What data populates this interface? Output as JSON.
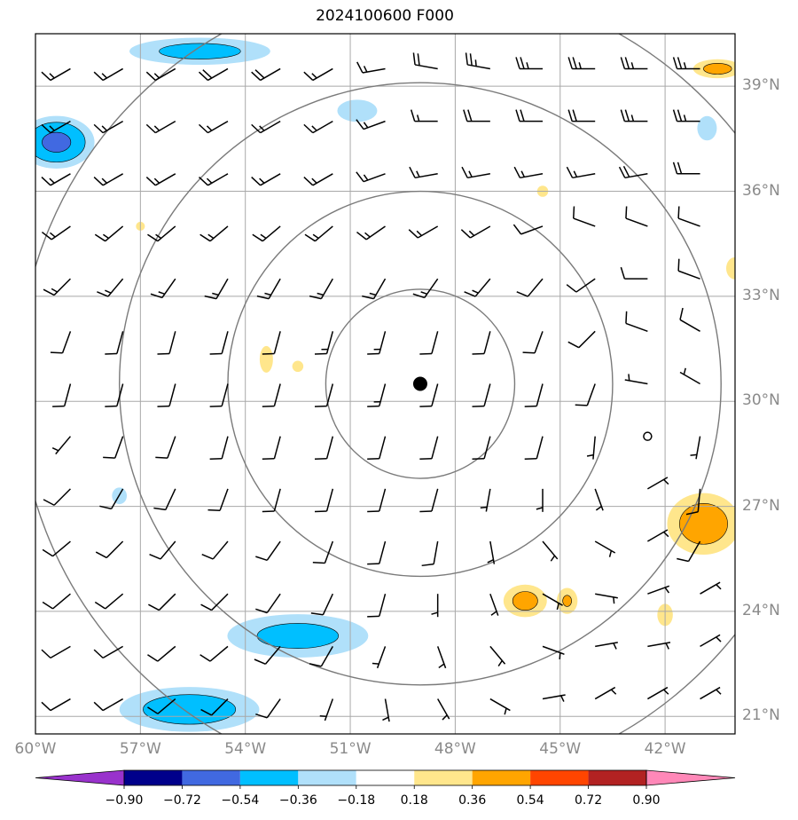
{
  "title": "2024100600 F000",
  "map": {
    "lon_range": [
      -60,
      -40
    ],
    "lat_range": [
      20.5,
      40.5
    ],
    "center": {
      "lon": -49.0,
      "lat": 30.5
    },
    "range_rings_deg": [
      2.7,
      5.5,
      8.6,
      11.5
    ],
    "lat_labels": [
      {
        "lat": 39,
        "text": "39°N"
      },
      {
        "lat": 36,
        "text": "36°N"
      },
      {
        "lat": 33,
        "text": "33°N"
      },
      {
        "lat": 30,
        "text": "30°N"
      },
      {
        "lat": 27,
        "text": "27°N"
      },
      {
        "lat": 24,
        "text": "24°N"
      },
      {
        "lat": 21,
        "text": "21°N"
      }
    ],
    "lon_labels": [
      {
        "lon": -60,
        "text": "60°W"
      },
      {
        "lon": -57,
        "text": "57°W"
      },
      {
        "lon": -54,
        "text": "54°W"
      },
      {
        "lon": -51,
        "text": "51°W"
      },
      {
        "lon": -48,
        "text": "48°W"
      },
      {
        "lon": -45,
        "text": "45°W"
      },
      {
        "lon": -42,
        "text": "42°W"
      }
    ]
  },
  "colorbar": {
    "colors": [
      "#9932cc",
      "#00008b",
      "#4169e1",
      "#00bfff",
      "#b0e0fa",
      "#ffffff",
      "#ffe68c",
      "#ffa500",
      "#ff4500",
      "#b22222",
      "#ff88b8"
    ],
    "labels": [
      "−0.90",
      "−0.72",
      "−0.54",
      "−0.36",
      "−0.18",
      "0.18",
      "0.36",
      "0.54",
      "0.72",
      "0.90"
    ]
  },
  "chart_data": {
    "type": "heatmap",
    "title": "2024100600 F000",
    "levels": [
      -0.9,
      -0.72,
      -0.54,
      -0.36,
      -0.18,
      0.18,
      0.36,
      0.54,
      0.72,
      0.9
    ],
    "field_blobs": [
      {
        "lon": -55.3,
        "lat": 40.0,
        "rx": 2.6,
        "ry": 0.5,
        "sign": -1,
        "peak": 0.45
      },
      {
        "lon": -59.4,
        "lat": 37.4,
        "rx": 1.3,
        "ry": 0.9,
        "sign": -1,
        "peak": 0.6
      },
      {
        "lon": -50.8,
        "lat": 38.3,
        "rx": 0.9,
        "ry": 0.5,
        "sign": -1,
        "peak": 0.3
      },
      {
        "lon": -40.8,
        "lat": 37.8,
        "rx": 0.4,
        "ry": 0.5,
        "sign": -1,
        "peak": 0.35
      },
      {
        "lon": -40.5,
        "lat": 39.5,
        "rx": 0.9,
        "ry": 0.35,
        "sign": 1,
        "peak": 0.45
      },
      {
        "lon": -52.5,
        "lat": 23.3,
        "rx": 2.6,
        "ry": 0.8,
        "sign": -1,
        "peak": 0.45
      },
      {
        "lon": -55.6,
        "lat": 21.2,
        "rx": 2.5,
        "ry": 0.8,
        "sign": -1,
        "peak": 0.5
      },
      {
        "lon": -57.6,
        "lat": 27.3,
        "rx": 0.4,
        "ry": 0.45,
        "sign": -1,
        "peak": 0.25
      },
      {
        "lon": -53.4,
        "lat": 31.2,
        "rx": 0.3,
        "ry": 0.6,
        "sign": 1,
        "peak": 0.3
      },
      {
        "lon": -52.5,
        "lat": 31.0,
        "rx": 0.3,
        "ry": 0.3,
        "sign": 1,
        "peak": 0.25
      },
      {
        "lon": -46.0,
        "lat": 24.3,
        "rx": 0.8,
        "ry": 0.6,
        "sign": 1,
        "peak": 0.45
      },
      {
        "lon": -44.8,
        "lat": 24.3,
        "rx": 0.4,
        "ry": 0.5,
        "sign": 1,
        "peak": 0.4
      },
      {
        "lon": -40.9,
        "lat": 26.5,
        "rx": 1.3,
        "ry": 1.1,
        "sign": 1,
        "peak": 0.5
      },
      {
        "lon": -42.0,
        "lat": 23.9,
        "rx": 0.35,
        "ry": 0.5,
        "sign": 1,
        "peak": 0.3
      },
      {
        "lon": -40.0,
        "lat": 33.8,
        "rx": 0.4,
        "ry": 0.5,
        "sign": 1,
        "peak": 0.3
      },
      {
        "lon": -57.0,
        "lat": 35.0,
        "rx": 0.3,
        "ry": 0.3,
        "sign": 1,
        "peak": 0.22
      },
      {
        "lon": -45.5,
        "lat": 36.0,
        "rx": 0.3,
        "ry": 0.3,
        "sign": 1,
        "peak": 0.25
      }
    ],
    "wind_barbs": {
      "lons": [
        -59,
        -57.5,
        -56,
        -54.5,
        -53,
        -51.5,
        -50,
        -48.5,
        -47,
        -45.5,
        -44,
        -42.5,
        -41
      ],
      "lats": [
        39.5,
        38,
        36.5,
        35,
        33.5,
        32,
        30.5,
        29,
        27.5,
        26,
        24.5,
        23,
        21.5
      ],
      "direction_deg": [
        [
          240,
          240,
          240,
          240,
          240,
          240,
          260,
          280,
          280,
          270,
          270,
          270,
          270
        ],
        [
          240,
          240,
          240,
          240,
          240,
          240,
          250,
          270,
          270,
          270,
          270,
          270,
          270
        ],
        [
          240,
          240,
          240,
          240,
          240,
          240,
          250,
          260,
          260,
          260,
          260,
          260,
          270
        ],
        [
          235,
          230,
          230,
          230,
          230,
          230,
          235,
          240,
          240,
          250,
          290,
          290,
          290
        ],
        [
          225,
          220,
          215,
          210,
          210,
          210,
          210,
          215,
          220,
          220,
          235,
          270,
          290
        ],
        [
          200,
          195,
          195,
          195,
          195,
          195,
          195,
          195,
          195,
          200,
          225,
          290,
          300
        ],
        [
          195,
          195,
          195,
          195,
          195,
          195,
          195,
          195,
          195,
          195,
          200,
          280,
          300
        ],
        [
          220,
          200,
          200,
          195,
          195,
          195,
          195,
          195,
          195,
          195,
          185,
          0,
          190
        ],
        [
          225,
          210,
          205,
          200,
          195,
          195,
          195,
          195,
          190,
          180,
          160,
          60,
          185
        ],
        [
          230,
          225,
          220,
          220,
          215,
          200,
          195,
          190,
          170,
          140,
          120,
          60,
          210
        ],
        [
          230,
          230,
          225,
          225,
          215,
          205,
          195,
          180,
          160,
          120,
          100,
          70,
          60
        ],
        [
          240,
          240,
          230,
          230,
          220,
          210,
          200,
          160,
          140,
          110,
          80,
          80,
          60
        ],
        [
          240,
          240,
          230,
          225,
          215,
          200,
          170,
          150,
          120,
          80,
          60,
          60,
          60
        ]
      ],
      "speed_kt": [
        [
          15,
          15,
          15,
          20,
          20,
          15,
          15,
          20,
          25,
          25,
          25,
          25,
          25
        ],
        [
          15,
          15,
          15,
          15,
          15,
          15,
          15,
          15,
          20,
          20,
          20,
          25,
          25
        ],
        [
          15,
          15,
          15,
          15,
          15,
          15,
          15,
          15,
          15,
          15,
          15,
          20,
          20
        ],
        [
          15,
          15,
          15,
          15,
          15,
          15,
          15,
          15,
          15,
          10,
          10,
          10,
          10
        ],
        [
          15,
          15,
          15,
          15,
          15,
          15,
          15,
          15,
          15,
          10,
          10,
          10,
          10
        ],
        [
          10,
          10,
          10,
          10,
          10,
          15,
          15,
          10,
          10,
          10,
          10,
          10,
          10
        ],
        [
          10,
          10,
          10,
          10,
          10,
          10,
          15,
          10,
          10,
          10,
          10,
          5,
          5
        ],
        [
          5,
          10,
          10,
          10,
          10,
          10,
          10,
          10,
          10,
          10,
          5,
          0,
          5
        ],
        [
          10,
          10,
          10,
          10,
          10,
          10,
          10,
          10,
          5,
          5,
          5,
          5,
          10
        ],
        [
          10,
          10,
          10,
          10,
          10,
          10,
          10,
          10,
          5,
          5,
          5,
          5,
          10
        ],
        [
          10,
          10,
          10,
          10,
          10,
          10,
          10,
          5,
          5,
          5,
          5,
          5,
          5
        ],
        [
          10,
          10,
          10,
          10,
          10,
          10,
          5,
          5,
          5,
          5,
          5,
          5,
          5
        ],
        [
          10,
          10,
          10,
          10,
          10,
          5,
          5,
          5,
          5,
          5,
          5,
          5,
          5
        ]
      ]
    }
  }
}
